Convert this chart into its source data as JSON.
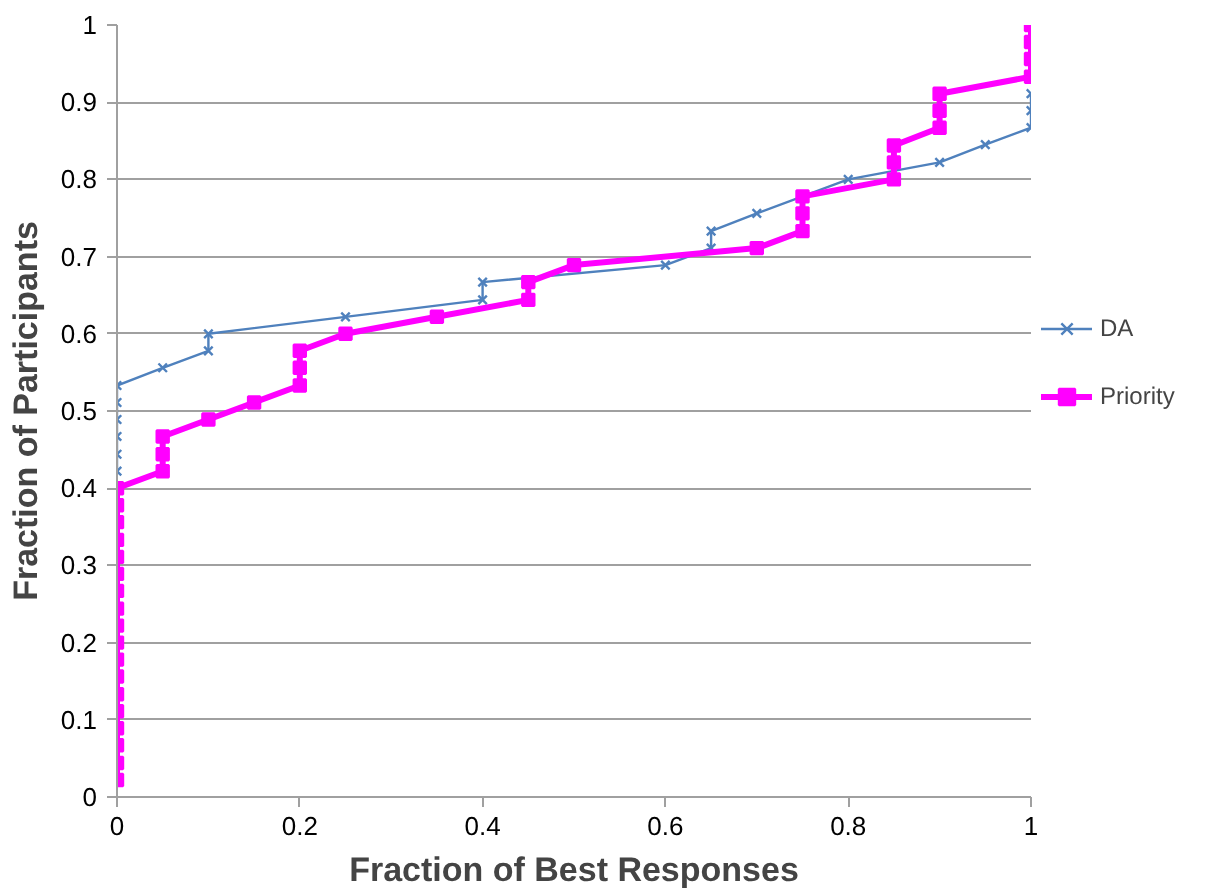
{
  "chart_data": {
    "type": "line",
    "xlabel": "Fraction of Best Responses",
    "ylabel": "Fraction of Participants",
    "xlim": [
      0,
      1
    ],
    "ylim": [
      0,
      1
    ],
    "xticks": [
      0,
      0.2,
      0.4,
      0.6,
      0.8,
      1
    ],
    "yticks": [
      0,
      0.1,
      0.2,
      0.3,
      0.4,
      0.5,
      0.6,
      0.7,
      0.8,
      0.9,
      1
    ],
    "grid": "y",
    "legend": "right",
    "series": [
      {
        "name": "DA",
        "color": "#4f81bd",
        "marker": "cross",
        "x": [
          0,
          0,
          0,
          0,
          0,
          0,
          0.05,
          0.1,
          0.1,
          0.25,
          0.4,
          0.4,
          0.6,
          0.65,
          0.65,
          0.7,
          0.8,
          0.9,
          0.95,
          1,
          1,
          1
        ],
        "values": [
          0.422,
          0.444,
          0.467,
          0.489,
          0.511,
          0.533,
          0.556,
          0.578,
          0.6,
          0.622,
          0.644,
          0.667,
          0.689,
          0.711,
          0.733,
          0.756,
          0.8,
          0.822,
          0.845,
          0.867,
          0.889,
          0.911
        ]
      },
      {
        "name": "Priority",
        "color": "#ff00ff",
        "marker": "square",
        "x": [
          0,
          0,
          0,
          0,
          0,
          0,
          0,
          0,
          0,
          0,
          0,
          0,
          0,
          0,
          0,
          0,
          0,
          0,
          0.05,
          0.05,
          0.05,
          0.1,
          0.15,
          0.2,
          0.2,
          0.2,
          0.25,
          0.35,
          0.45,
          0.45,
          0.5,
          0.7,
          0.75,
          0.75,
          0.75,
          0.85,
          0.85,
          0.85,
          0.9,
          0.9,
          0.9,
          1,
          1,
          1,
          1
        ],
        "values": [
          0.022,
          0.044,
          0.067,
          0.089,
          0.111,
          0.133,
          0.156,
          0.178,
          0.2,
          0.222,
          0.244,
          0.267,
          0.289,
          0.311,
          0.333,
          0.356,
          0.378,
          0.4,
          0.422,
          0.444,
          0.467,
          0.489,
          0.511,
          0.533,
          0.556,
          0.578,
          0.6,
          0.622,
          0.644,
          0.667,
          0.689,
          0.711,
          0.733,
          0.756,
          0.778,
          0.8,
          0.822,
          0.844,
          0.867,
          0.889,
          0.911,
          0.933,
          0.956,
          0.978,
          1.0
        ]
      }
    ]
  }
}
